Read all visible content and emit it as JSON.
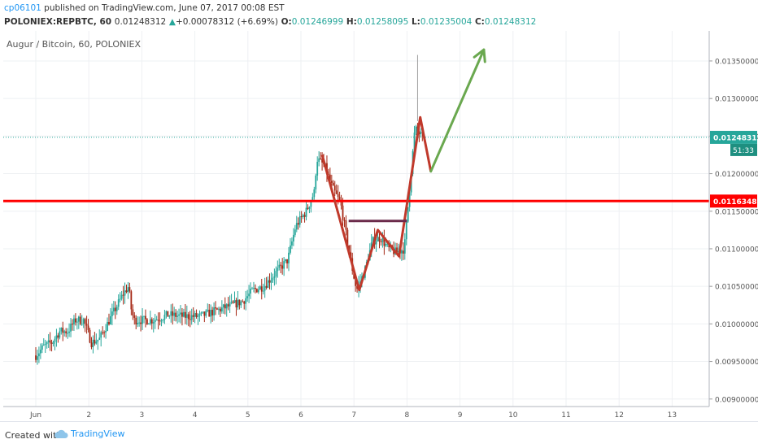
{
  "header": {
    "author": "cp06101",
    "published": " published on TradingView.com, June 07, 2017 00:08 EST",
    "symbol": "POLONIEX:REPBTC, 60",
    "last": "0.01248312",
    "change_arrow": "▲",
    "change": "+0.00078312 (+6.69%)",
    "o_label": "O:",
    "o_value": "0.01246999",
    "h_label": "H:",
    "h_value": "0.01258095",
    "l_label": "L:",
    "l_value": "0.01235004",
    "c_label": "C:",
    "c_value": "0.01248312"
  },
  "footer": {
    "created_with": "Created with",
    "brand": "TradingView"
  },
  "colors": {
    "up": "#26a69a",
    "down": "#a52714",
    "support_line": "#ff0000",
    "pattern": "#c0392b",
    "neckline": "#6b2a4a",
    "arrow": "#6aa84f"
  },
  "chart_data": {
    "type": "candlestick",
    "title": "Augur / Bitcoin, 60, POLONIEX",
    "ylim": [
      0.0089,
      0.0139
    ],
    "y_ticks": [
      "0.01350000",
      "0.01300000",
      "0.01250000",
      "0.01200000",
      "0.01150000",
      "0.01100000",
      "0.01050000",
      "0.01000000",
      "0.00950000",
      "0.00900000"
    ],
    "x_ticks": [
      "Jun",
      "2",
      "3",
      "4",
      "5",
      "6",
      "7",
      "8",
      "9",
      "10",
      "11",
      "12",
      "13"
    ],
    "grid": true,
    "last_price_label": "0.01248312",
    "countdown_label": "51:33",
    "support_level": 0.0116348,
    "support_label": "0.01163480",
    "overlays": [
      {
        "kind": "zigzag",
        "points": [
          [
            5.4,
            0.01225
          ],
          [
            6.1,
            0.01045
          ],
          [
            6.45,
            0.01125
          ],
          [
            6.85,
            0.0109
          ],
          [
            7.25,
            0.01275
          ],
          [
            7.45,
            0.01203
          ]
        ]
      },
      {
        "kind": "neckline",
        "points": [
          [
            5.9,
            0.01137
          ],
          [
            7.0,
            0.01137
          ]
        ]
      },
      {
        "kind": "arrow",
        "points": [
          [
            7.45,
            0.01203
          ],
          [
            8.45,
            0.01365
          ]
        ]
      }
    ],
    "anchors": [
      [
        0.0,
        0.00958
      ],
      [
        0.15,
        0.0097
      ],
      [
        0.3,
        0.00975
      ],
      [
        0.45,
        0.0099
      ],
      [
        0.6,
        0.0099
      ],
      [
        0.75,
        0.01005
      ],
      [
        0.9,
        0.01005
      ],
      [
        1.05,
        0.00975
      ],
      [
        1.2,
        0.0098
      ],
      [
        1.35,
        0.01
      ],
      [
        1.5,
        0.0102
      ],
      [
        1.65,
        0.0104
      ],
      [
        1.75,
        0.0105
      ],
      [
        1.8,
        0.0102
      ],
      [
        1.85,
        0.01005
      ],
      [
        2.0,
        0.01005
      ],
      [
        2.2,
        0.01005
      ],
      [
        2.5,
        0.01012
      ],
      [
        2.8,
        0.0101
      ],
      [
        3.1,
        0.0101
      ],
      [
        3.5,
        0.0102
      ],
      [
        3.9,
        0.0103
      ],
      [
        4.1,
        0.01045
      ],
      [
        4.3,
        0.0105
      ],
      [
        4.55,
        0.0107
      ],
      [
        4.75,
        0.01085
      ],
      [
        4.9,
        0.0113
      ],
      [
        5.1,
        0.0115
      ],
      [
        5.25,
        0.01175
      ],
      [
        5.3,
        0.0122
      ],
      [
        5.45,
        0.0121
      ],
      [
        5.6,
        0.0118
      ],
      [
        5.75,
        0.0116
      ],
      [
        5.95,
        0.0108
      ],
      [
        6.05,
        0.01045
      ],
      [
        6.2,
        0.0107
      ],
      [
        6.35,
        0.0111
      ],
      [
        6.5,
        0.01115
      ],
      [
        6.65,
        0.011
      ],
      [
        6.8,
        0.01095
      ],
      [
        6.95,
        0.011
      ],
      [
        7.05,
        0.0118
      ],
      [
        7.15,
        0.0126
      ],
      [
        7.3,
        0.01248
      ]
    ],
    "spike": {
      "x": 7.2,
      "high": 0.01358
    }
  }
}
